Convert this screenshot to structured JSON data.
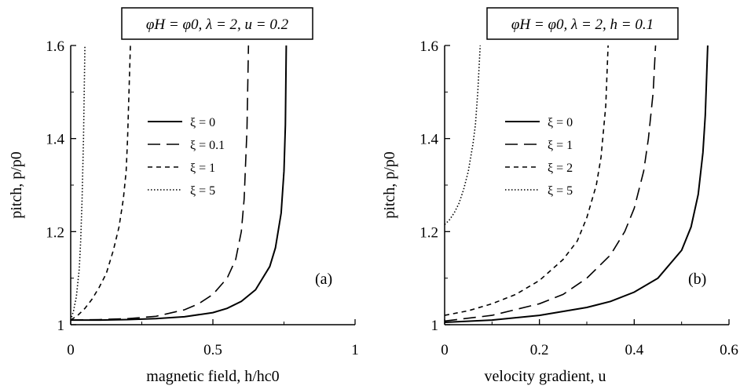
{
  "chart_data": [
    {
      "type": "line",
      "panel_label": "(a)",
      "param_text": "φH = φ0, λ = 2, u = 0.2",
      "xlabel": "magnetic field, h/hc0",
      "ylabel": "pitch, p/p0",
      "xlim": [
        0,
        1
      ],
      "ylim": [
        1.0,
        1.6
      ],
      "xticks": [
        {
          "value": 0,
          "label": "0"
        },
        {
          "value": 0.5,
          "label": "0.5"
        },
        {
          "value": 1,
          "label": "1"
        }
      ],
      "yticks": [
        {
          "value": 1.0,
          "label": "1"
        },
        {
          "value": 1.2,
          "label": "1.2"
        },
        {
          "value": 1.4,
          "label": "1.4"
        },
        {
          "value": 1.6,
          "label": "1.6"
        }
      ],
      "legend_position": "center",
      "series": [
        {
          "name": "ξ = 0",
          "style": "solid",
          "x": [
            0,
            0.1,
            0.2,
            0.3,
            0.4,
            0.5,
            0.55,
            0.6,
            0.65,
            0.7,
            0.72,
            0.74,
            0.75,
            0.755,
            0.758
          ],
          "y": [
            1.01,
            1.01,
            1.011,
            1.013,
            1.017,
            1.026,
            1.035,
            1.05,
            1.075,
            1.125,
            1.165,
            1.24,
            1.33,
            1.43,
            1.6
          ]
        },
        {
          "name": "ξ = 0.1",
          "style": "dashed",
          "x": [
            0,
            0.1,
            0.2,
            0.3,
            0.4,
            0.45,
            0.5,
            0.55,
            0.58,
            0.6,
            0.61,
            0.62,
            0.625
          ],
          "y": [
            1.01,
            1.011,
            1.013,
            1.018,
            1.032,
            1.045,
            1.065,
            1.1,
            1.14,
            1.2,
            1.27,
            1.42,
            1.6
          ]
        },
        {
          "name": "ξ = 1",
          "style": "short-dashed",
          "x": [
            0,
            0.025,
            0.05,
            0.075,
            0.1,
            0.125,
            0.15,
            0.17,
            0.185,
            0.195,
            0.2,
            0.205,
            0.21
          ],
          "y": [
            1.01,
            1.02,
            1.035,
            1.055,
            1.08,
            1.11,
            1.16,
            1.21,
            1.27,
            1.33,
            1.4,
            1.5,
            1.6
          ]
        },
        {
          "name": "ξ = 5",
          "style": "dotted",
          "x": [
            0,
            0.01,
            0.02,
            0.03,
            0.035,
            0.04,
            0.045,
            0.05
          ],
          "y": [
            1.01,
            1.03,
            1.06,
            1.12,
            1.18,
            1.27,
            1.4,
            1.6
          ]
        }
      ]
    },
    {
      "type": "line",
      "panel_label": "(b)",
      "param_text": "φH = φ0, λ = 2, h = 0.1",
      "xlabel": "velocity gradient, u",
      "ylabel": "pitch, p/p0",
      "xlim": [
        0,
        0.6
      ],
      "ylim": [
        1.0,
        1.6
      ],
      "xticks": [
        {
          "value": 0,
          "label": "0"
        },
        {
          "value": 0.2,
          "label": "0.2"
        },
        {
          "value": 0.4,
          "label": "0.4"
        },
        {
          "value": 0.6,
          "label": "0.6"
        }
      ],
      "yticks": [
        {
          "value": 1.0,
          "label": "1"
        },
        {
          "value": 1.2,
          "label": "1.2"
        },
        {
          "value": 1.4,
          "label": "1.4"
        },
        {
          "value": 1.6,
          "label": "1.6"
        }
      ],
      "legend_position": "upper-left",
      "series": [
        {
          "name": "ξ = 0",
          "style": "solid",
          "x": [
            0,
            0.1,
            0.2,
            0.3,
            0.35,
            0.4,
            0.45,
            0.5,
            0.52,
            0.535,
            0.545,
            0.55,
            0.555
          ],
          "y": [
            1.005,
            1.01,
            1.02,
            1.037,
            1.05,
            1.07,
            1.1,
            1.16,
            1.21,
            1.28,
            1.37,
            1.45,
            1.6
          ]
        },
        {
          "name": "ξ = 1",
          "style": "dashed",
          "x": [
            0,
            0.1,
            0.2,
            0.25,
            0.3,
            0.35,
            0.38,
            0.4,
            0.42,
            0.43,
            0.44,
            0.445
          ],
          "y": [
            1.008,
            1.02,
            1.045,
            1.065,
            1.1,
            1.15,
            1.2,
            1.25,
            1.33,
            1.4,
            1.5,
            1.6
          ]
        },
        {
          "name": "ξ = 2",
          "style": "short-dashed",
          "x": [
            0,
            0.05,
            0.1,
            0.15,
            0.2,
            0.25,
            0.28,
            0.3,
            0.32,
            0.33,
            0.34,
            0.345
          ],
          "y": [
            1.02,
            1.03,
            1.045,
            1.065,
            1.095,
            1.14,
            1.18,
            1.23,
            1.3,
            1.36,
            1.47,
            1.6
          ]
        },
        {
          "name": "ξ = 5",
          "style": "dotted",
          "x": [
            0,
            0.01,
            0.02,
            0.03,
            0.04,
            0.05,
            0.06,
            0.065,
            0.07,
            0.075
          ],
          "y": [
            1.215,
            1.225,
            1.24,
            1.26,
            1.29,
            1.33,
            1.39,
            1.43,
            1.5,
            1.6
          ]
        }
      ]
    }
  ]
}
